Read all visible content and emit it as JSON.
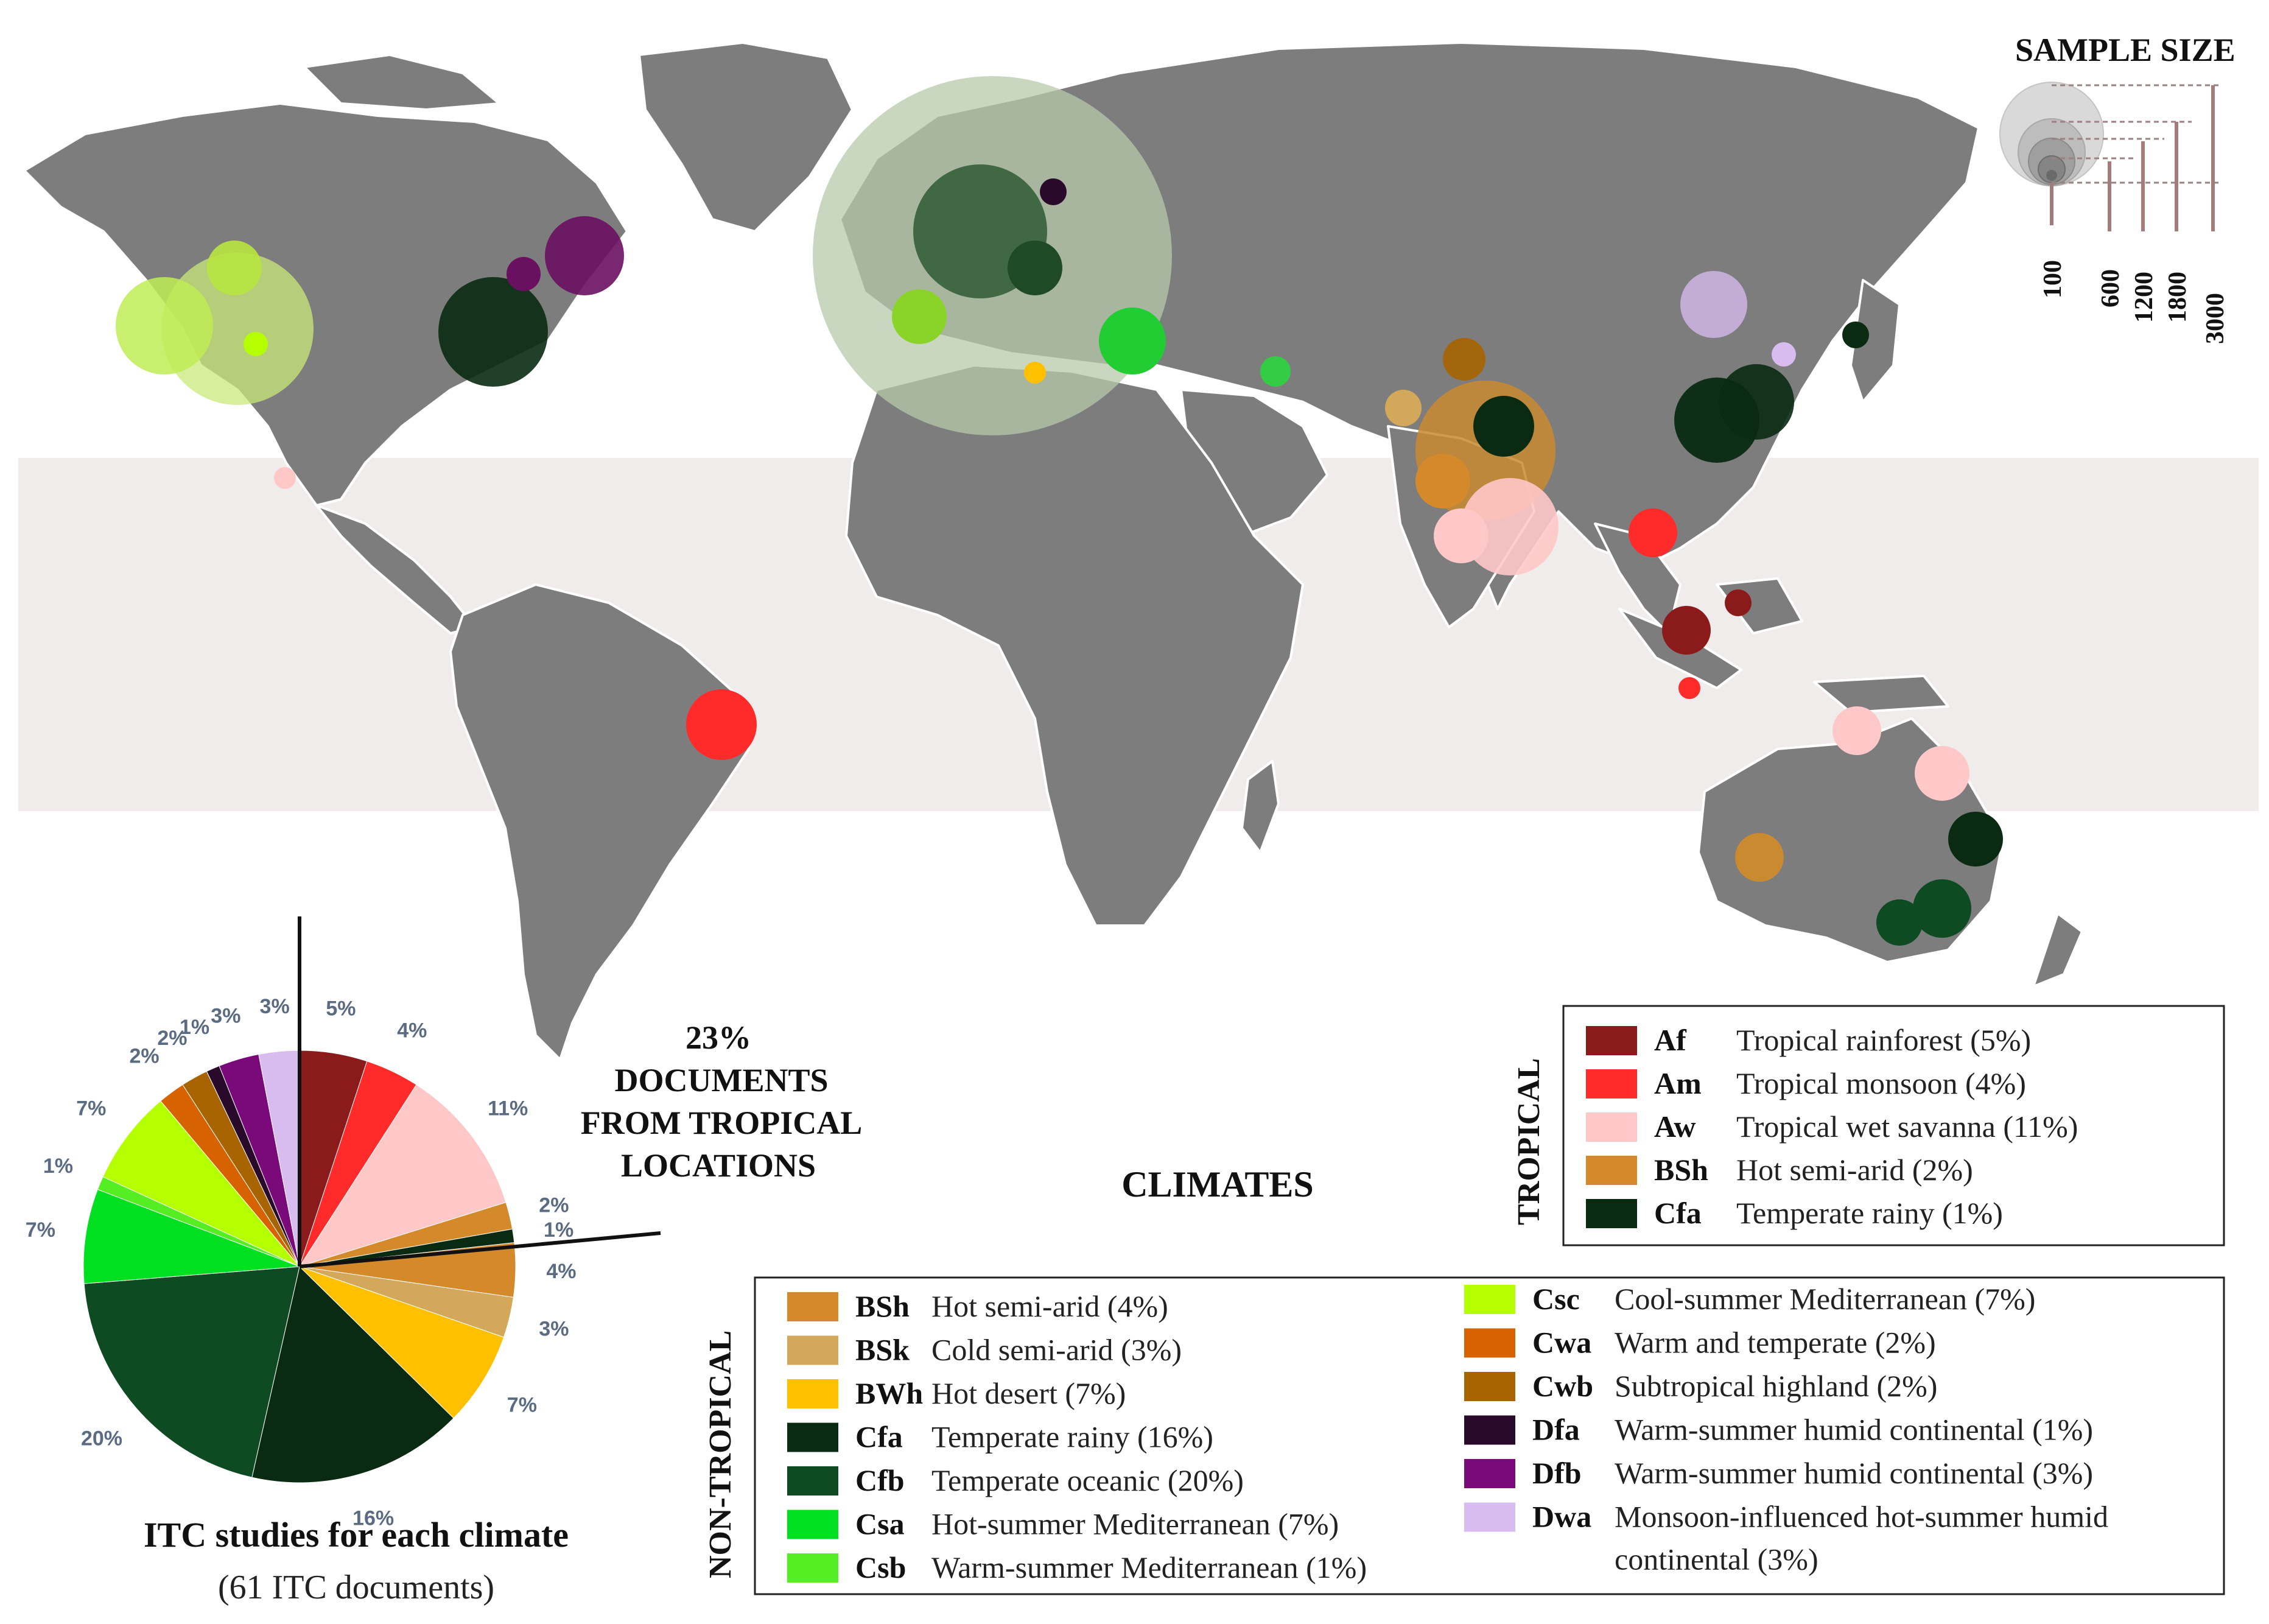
{
  "sample_size": {
    "title": "SAMPLE SIZE",
    "values": [
      "100",
      "600",
      "1200",
      "1800",
      "3000"
    ]
  },
  "tropical_note": {
    "lines": [
      "23%",
      "DOCUMENTS",
      "FROM TROPICAL",
      "LOCATIONS"
    ]
  },
  "climates_heading": "CLIMATES",
  "legend_tropical": {
    "title": "TROPICAL",
    "items": [
      {
        "code": "Af",
        "name": "Tropical rainforest (5%)",
        "color": "#8b1a1a"
      },
      {
        "code": "Am",
        "name": "Tropical monsoon (4%)",
        "color": "#ff2a2a"
      },
      {
        "code": "Aw",
        "name": "Tropical wet savanna (11%)",
        "color": "#ffc8c8"
      },
      {
        "code": "BSh",
        "name": "Hot semi-arid (2%)",
        "color": "#d4892a"
      },
      {
        "code": "Cfa",
        "name": "Temperate rainy (1%)",
        "color": "#0a2a12"
      }
    ]
  },
  "legend_nontropical": {
    "title": "NON-TROPICAL",
    "left": [
      {
        "code": "BSh",
        "name": "Hot semi-arid (4%)",
        "color": "#d4892a"
      },
      {
        "code": "BSk",
        "name": "Cold semi-arid (3%)",
        "color": "#d4a85a"
      },
      {
        "code": "BWh",
        "name": "Hot desert (7%)",
        "color": "#ffc000"
      },
      {
        "code": "Cfa",
        "name": "Temperate rainy (16%)",
        "color": "#0a2a12"
      },
      {
        "code": "Cfb",
        "name": "Temperate oceanic (20%)",
        "color": "#0e4a22"
      },
      {
        "code": "Csa",
        "name": "Hot-summer Mediterranean (7%)",
        "color": "#00e020"
      },
      {
        "code": "Csb",
        "name": "Warm-summer Mediterranean (1%)",
        "color": "#55ee22"
      }
    ],
    "right": [
      {
        "code": "Csc",
        "name": "Cool-summer Mediterranean (7%)",
        "color": "#b4ff00"
      },
      {
        "code": "Cwa",
        "name": "Warm and temperate (2%)",
        "color": "#d66200"
      },
      {
        "code": "Cwb",
        "name": "Subtropical highland (2%)",
        "color": "#a86400"
      },
      {
        "code": "Dfa",
        "name": "Warm-summer humid continental (1%)",
        "color": "#2a0a2a"
      },
      {
        "code": "Dfb",
        "name": "Warm-summer humid continental (3%)",
        "color": "#7a0a7a"
      },
      {
        "code": "Dwa",
        "name": "Monsoon-influenced hot-summer humid",
        "name2": "continental (3%)",
        "color": "#d8bcf0"
      }
    ]
  },
  "pie_caption": {
    "title": "ITC studies for each climate",
    "subtitle": "(61 ITC documents)"
  },
  "chart_data": {
    "type": "pie",
    "slices": [
      {
        "label": "5%",
        "value": 5,
        "color": "#8b1a1a"
      },
      {
        "label": "4%",
        "value": 4,
        "color": "#ff2a2a"
      },
      {
        "label": "11%",
        "value": 11,
        "color": "#ffc8c8"
      },
      {
        "label": "2%",
        "value": 2,
        "color": "#d4892a"
      },
      {
        "label": "1%",
        "value": 1,
        "color": "#0a2a12"
      },
      {
        "label": "4%",
        "value": 4,
        "color": "#d4892a"
      },
      {
        "label": "3%",
        "value": 3,
        "color": "#d4a85a"
      },
      {
        "label": "7%",
        "value": 7,
        "color": "#ffc000"
      },
      {
        "label": "16%",
        "value": 16,
        "color": "#0a2a12"
      },
      {
        "label": "20%",
        "value": 20,
        "color": "#0e4a22"
      },
      {
        "label": "7%",
        "value": 7,
        "color": "#00e020"
      },
      {
        "label": "1%",
        "value": 1,
        "color": "#55ee22"
      },
      {
        "label": "7%",
        "value": 7,
        "color": "#b4ff00"
      },
      {
        "label": "2%",
        "value": 2,
        "color": "#d66200"
      },
      {
        "label": "2%",
        "value": 2,
        "color": "#a86400"
      },
      {
        "label": "1%",
        "value": 1,
        "color": "#2a0a2a"
      },
      {
        "label": "3%",
        "value": 3,
        "color": "#7a0a7a"
      },
      {
        "label": "3%",
        "value": 3,
        "color": "#d8bcf0"
      }
    ],
    "tropical_share_percent": 23
  },
  "map_markers": [
    {
      "climate": "Csc",
      "color": "#b4ff00",
      "note": "western North America"
    },
    {
      "climate": "Cfa",
      "color": "#0a2a12",
      "note": "eastern USA"
    },
    {
      "climate": "Dfb",
      "color": "#7a0a7a",
      "note": "northeast North America"
    },
    {
      "climate": "Aw",
      "color": "#ffc8c8",
      "note": "Mexico"
    },
    {
      "climate": "Am",
      "color": "#ff2a2a",
      "note": "Brazil"
    },
    {
      "climate": "Cfb",
      "color": "#0e4a22",
      "note": "Europe"
    },
    {
      "climate": "Csa",
      "color": "#00e020",
      "note": "Mediterranean"
    },
    {
      "climate": "BSh",
      "color": "#d4892a",
      "note": "India"
    },
    {
      "climate": "Aw",
      "color": "#ffc8c8",
      "note": "South India"
    },
    {
      "climate": "Cfa",
      "color": "#0a2a12",
      "note": "China"
    },
    {
      "climate": "Dwa",
      "color": "#d8bcf0",
      "note": "North China"
    },
    {
      "climate": "Af",
      "color": "#8b1a1a",
      "note": "Malaysia"
    },
    {
      "climate": "Cfb",
      "color": "#0e4a22",
      "note": "Australia"
    }
  ]
}
